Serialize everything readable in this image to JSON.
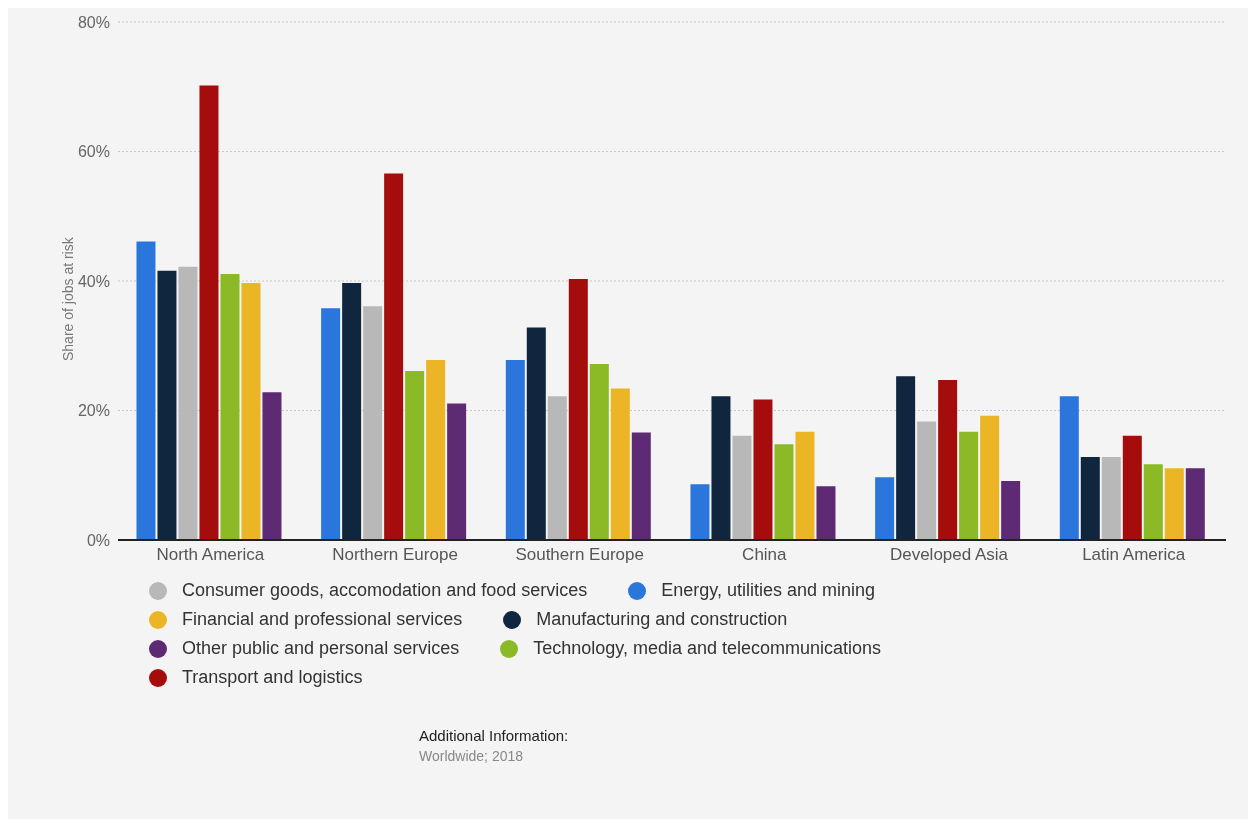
{
  "chart_data": {
    "type": "bar",
    "ylabel": "Share of jobs at risk",
    "categories": [
      "North America",
      "Northern Europe",
      "Southern Europe",
      "China",
      "Developed Asia",
      "Latin America"
    ],
    "series": [
      {
        "name": "Energy, utilities and mining",
        "color": "#2a76dd",
        "values": [
          46.1,
          35.8,
          27.8,
          8.6,
          9.7,
          22.2
        ]
      },
      {
        "name": "Manufacturing and construction",
        "color": "#10263f",
        "values": [
          41.6,
          39.7,
          32.8,
          22.2,
          25.3,
          12.8
        ]
      },
      {
        "name": "Consumer goods, accomodation and food services",
        "color": "#b8b8b8",
        "values": [
          42.2,
          36.1,
          22.2,
          16.1,
          18.3,
          12.8
        ]
      },
      {
        "name": "Transport and logistics",
        "color": "#a50c0c",
        "values": [
          70.2,
          56.6,
          40.3,
          21.7,
          24.7,
          16.1
        ]
      },
      {
        "name": "Technology, media and telecommunications",
        "color": "#8bba26",
        "values": [
          41.1,
          26.1,
          27.2,
          14.8,
          16.7,
          11.7
        ]
      },
      {
        "name": "Financial and professional services",
        "color": "#ebb526",
        "values": [
          39.7,
          27.8,
          23.4,
          16.7,
          19.2,
          11.1
        ]
      },
      {
        "name": "Other public and personal services",
        "color": "#5e2a73",
        "values": [
          22.8,
          21.1,
          16.6,
          8.3,
          9.1,
          11.1
        ]
      }
    ],
    "ylim": [
      0,
      80
    ],
    "yticks": [
      {
        "value": 0,
        "label": "0%"
      },
      {
        "value": 20,
        "label": "20%"
      },
      {
        "value": 40,
        "label": "40%"
      },
      {
        "value": 60,
        "label": "60%"
      },
      {
        "value": 80,
        "label": "80%"
      }
    ],
    "grid": "y",
    "legend": "bottom",
    "annotations": [
      "Additional Information:",
      "Worldwide; 2018"
    ]
  }
}
